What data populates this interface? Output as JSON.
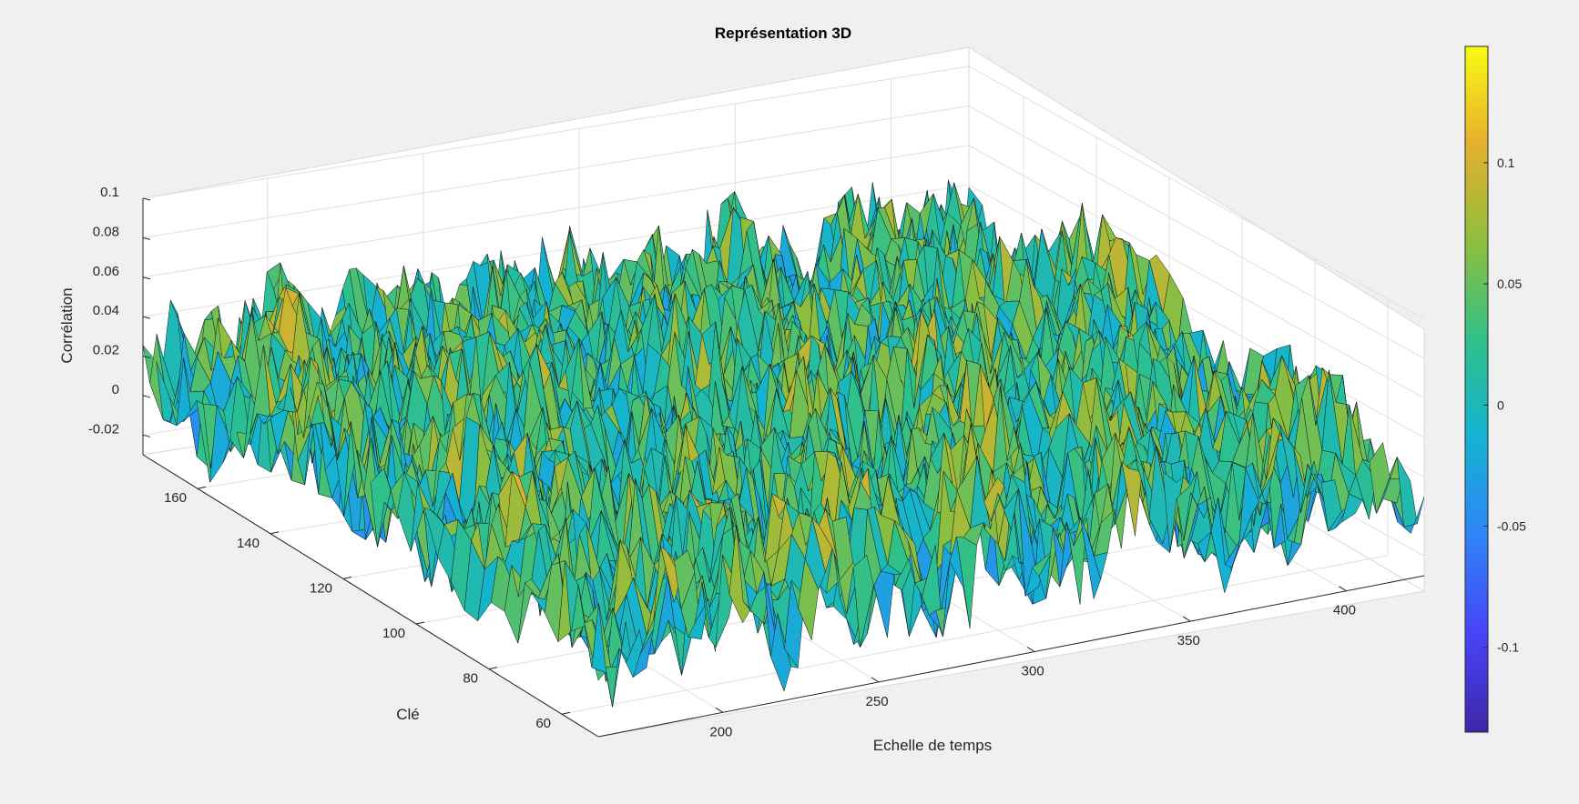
{
  "window": {
    "background": "#f0f0f0"
  },
  "chart_data": {
    "type": "surface3d",
    "title": "Représentation 3D",
    "xlabel": "Echelle de temps",
    "ylabel": "Clé",
    "zlabel": "Corrélation",
    "xlim": [
      160,
      425
    ],
    "ylim": [
      50,
      175
    ],
    "zlim": [
      -0.03,
      0.1
    ],
    "x_ticks": [
      200,
      250,
      300,
      350,
      400
    ],
    "x_tick_labels": [
      "200",
      "250",
      "300",
      "350",
      "400"
    ],
    "y_ticks": [
      60,
      80,
      100,
      120,
      140,
      160
    ],
    "y_tick_labels": [
      "60",
      "80",
      "100",
      "120",
      "140",
      "160"
    ],
    "z_ticks": [
      -0.02,
      0,
      0.02,
      0.04,
      0.06,
      0.08,
      0.1
    ],
    "z_tick_labels": [
      "-0.02",
      "0",
      "0.02",
      "0.04",
      "0.06",
      "0.08",
      "0.1"
    ],
    "grid": true,
    "colormap": "parula",
    "colormap_stops": [
      "#3e26a8",
      "#4743f8",
      "#2f85f6",
      "#14b3d1",
      "#2fc08a",
      "#8cbe3f",
      "#e6b02c",
      "#f9fa14"
    ],
    "edge_color": "#000000",
    "surface_data": "dense correlation surface; values mostly between -0.02 and 0.1, noisy peaks, color mapped over the colorbar range",
    "colorbar": {
      "limits": [
        -0.135,
        0.148
      ],
      "ticks": [
        -0.1,
        -0.05,
        0,
        0.05,
        0.1
      ],
      "tick_labels": [
        "-0.1",
        "-0.05",
        "0",
        "0.05",
        "0.1"
      ],
      "location": "right"
    }
  }
}
